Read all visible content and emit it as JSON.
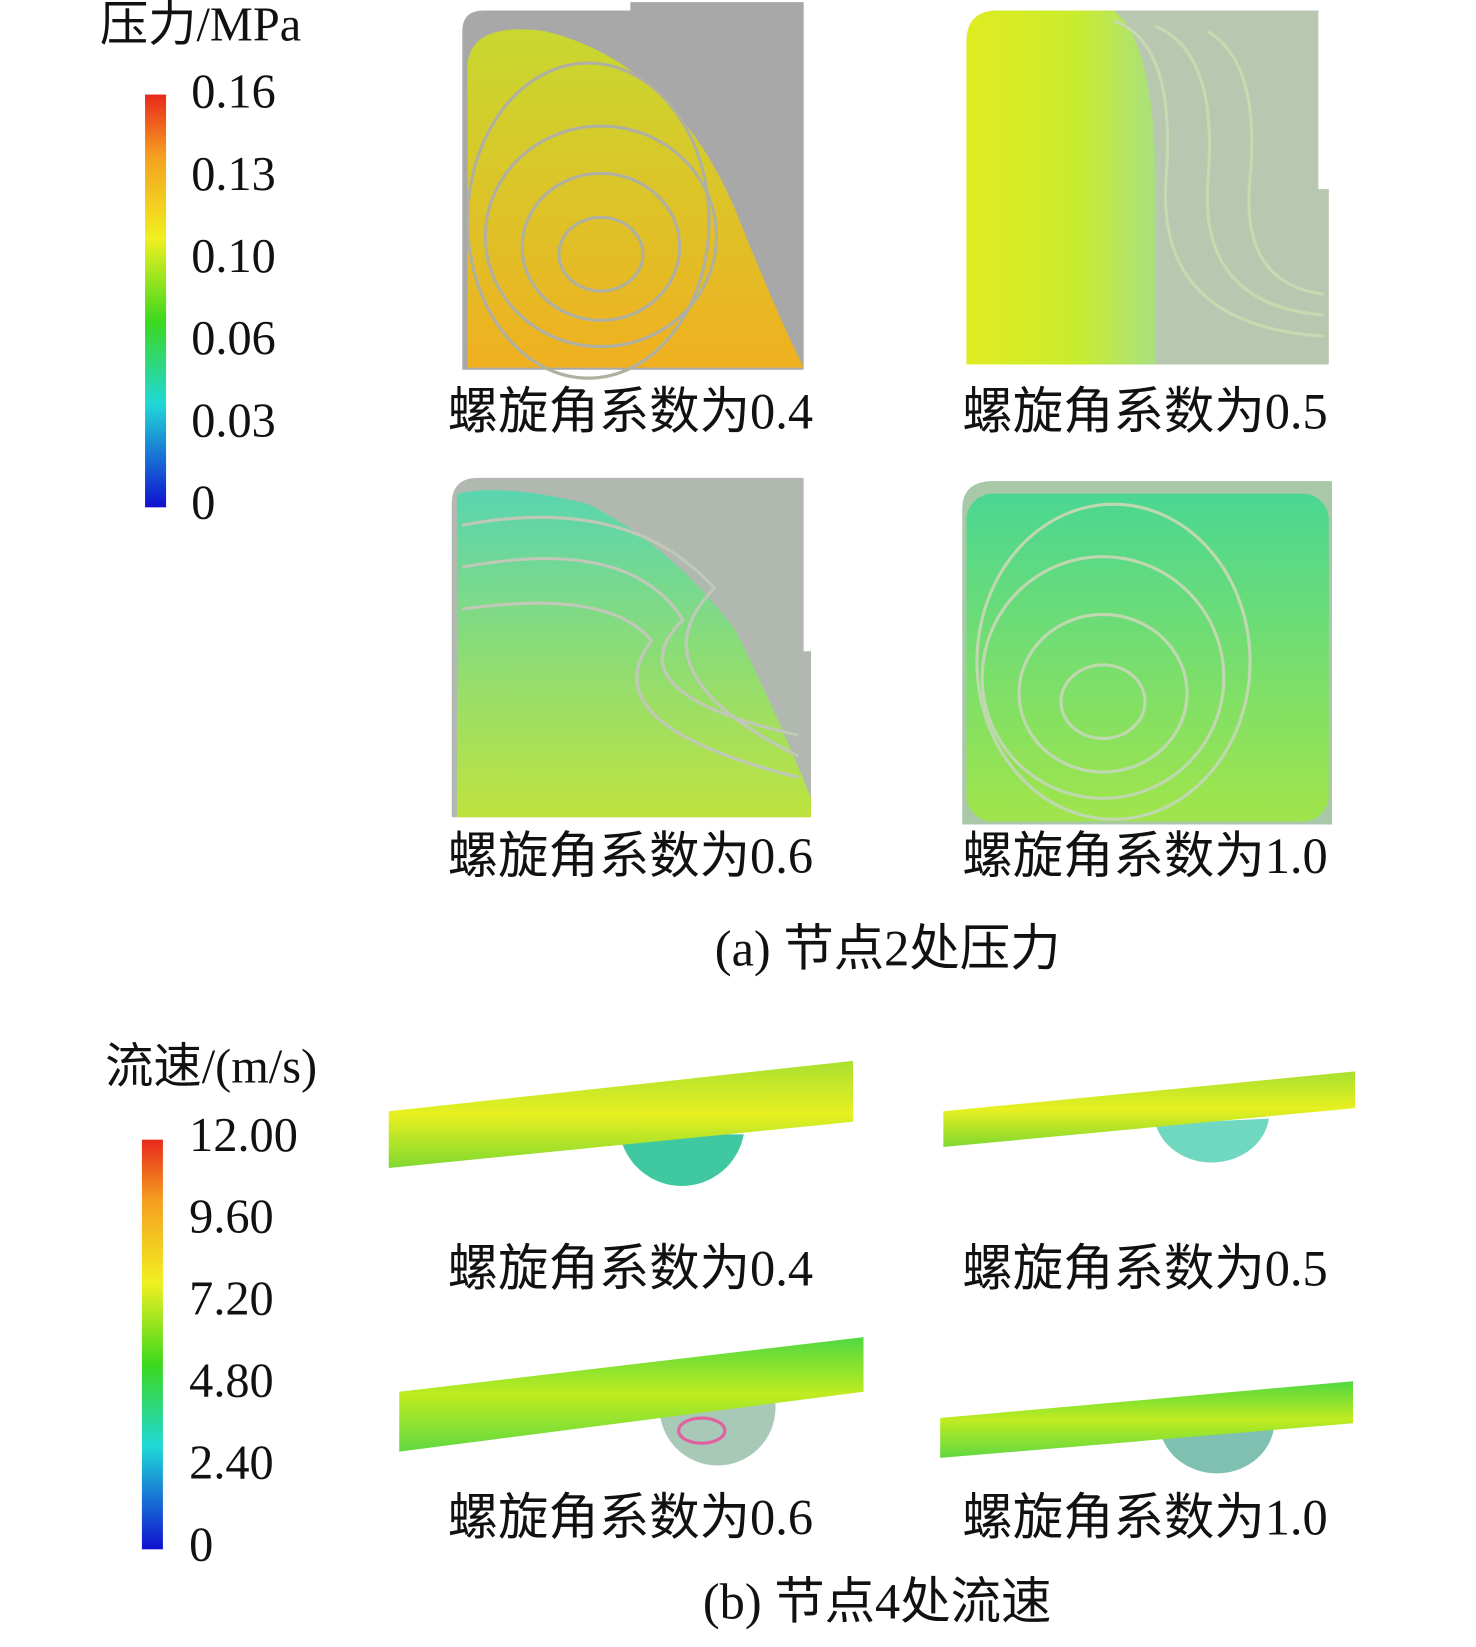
{
  "panels": [
    {
      "colorbar": {
        "title": "压力/MPa",
        "ticks": [
          "0.16",
          "0.13",
          "0.10",
          "0.06",
          "0.03",
          "0"
        ]
      },
      "images": [
        {
          "caption": "螺旋角系数为0.4"
        },
        {
          "caption": "螺旋角系数为0.5"
        },
        {
          "caption": "螺旋角系数为0.6"
        },
        {
          "caption": "螺旋角系数为1.0"
        }
      ],
      "caption": "(a) 节点2处压力"
    },
    {
      "colorbar": {
        "title": "流速/(m/s)",
        "ticks": [
          "12.00",
          "9.60",
          "7.20",
          "4.80",
          "2.40",
          "0"
        ]
      },
      "images": [
        {
          "caption": "螺旋角系数为0.4"
        },
        {
          "caption": "螺旋角系数为0.5"
        },
        {
          "caption": "螺旋角系数为0.6"
        },
        {
          "caption": "螺旋角系数为1.0"
        }
      ],
      "caption": "(b) 节点4处流速"
    }
  ]
}
